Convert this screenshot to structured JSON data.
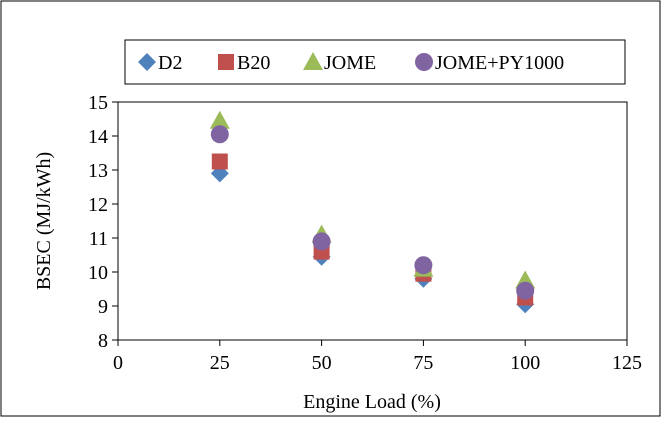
{
  "chart_data": {
    "type": "scatter",
    "title": "",
    "xlabel": "Engine Load (%)",
    "ylabel": "BSEC (MJ/kWh)",
    "xlim": [
      0,
      125
    ],
    "ylim": [
      8,
      15
    ],
    "x_ticks": [
      "0",
      "25",
      "50",
      "75",
      "100",
      "125"
    ],
    "y_ticks": [
      "8",
      "9",
      "10",
      "11",
      "12",
      "13",
      "14",
      "15"
    ],
    "grid": false,
    "legend_position": "top",
    "x": [
      25,
      50,
      75,
      100
    ],
    "series": [
      {
        "name": "D2",
        "marker": "diamond",
        "color": "#4f81bd",
        "values": [
          12.9,
          10.45,
          9.8,
          9.05
        ]
      },
      {
        "name": "B20",
        "marker": "square",
        "color": "#c0504d",
        "values": [
          13.25,
          10.6,
          9.95,
          9.25
        ]
      },
      {
        "name": "JOME",
        "marker": "triangle",
        "color": "#9bbb59",
        "values": [
          14.45,
          11.1,
          10.1,
          9.75
        ]
      },
      {
        "name": "JOME+PY1000",
        "marker": "circle",
        "color": "#8064a2",
        "values": [
          14.05,
          10.9,
          10.2,
          9.45
        ]
      }
    ]
  }
}
